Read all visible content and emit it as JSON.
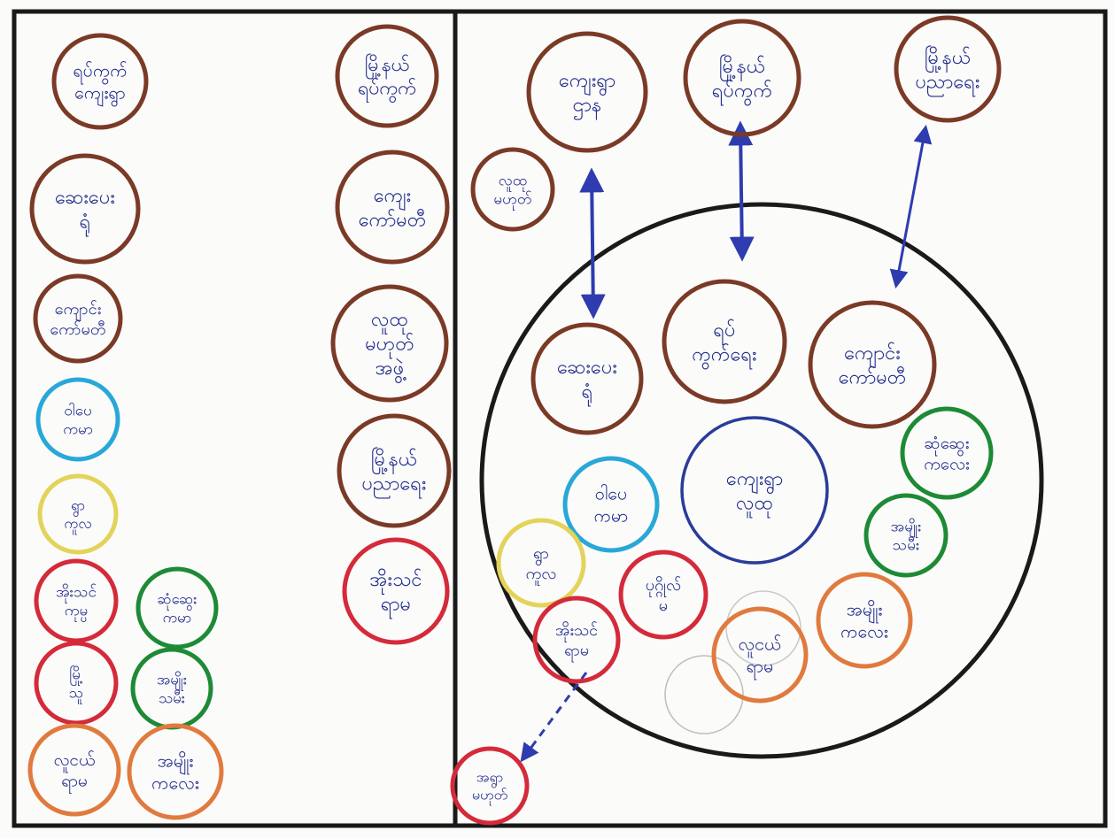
{
  "colors": {
    "frame": "#1a1a1a",
    "brown": "#7a3a26",
    "blue_text": "#1f2a8c",
    "blue_circle": "#2a3c9a",
    "arrow": "#2e3cb0",
    "cyan": "#28a8d8",
    "yellow": "#e3d35a",
    "red": "#d42a3a",
    "green": "#1e8a36",
    "orange": "#e07a3e",
    "faint": "#bdbdbd",
    "paper": "#fbfbf9"
  },
  "left_panel": {
    "circles": [
      {
        "id": "l1",
        "color": "brown",
        "lines": [
          "ရပ်ကွက်",
          "ကျေးရွာ"
        ]
      },
      {
        "id": "l2",
        "color": "brown",
        "lines": [
          "ဆေးပေး",
          "ရုံ"
        ]
      },
      {
        "id": "l3",
        "color": "brown",
        "lines": [
          "ကျောင်း",
          "ကော်မတီ"
        ]
      },
      {
        "id": "l4",
        "color": "cyan",
        "lines": [
          "ဝါပေ",
          "ကမာ"
        ]
      },
      {
        "id": "l5",
        "color": "yellow",
        "lines": [
          "ရွာ",
          "ကူလ"
        ]
      },
      {
        "id": "l6",
        "color": "red",
        "lines": [
          "အိုးသင်",
          "ကုမ္ပ"
        ]
      },
      {
        "id": "l7",
        "color": "green",
        "lines": [
          "ဆုံဆွေး",
          "ကမာ"
        ]
      },
      {
        "id": "l8",
        "color": "red",
        "lines": [
          "မြို့",
          "သူ"
        ]
      },
      {
        "id": "l9",
        "color": "green",
        "lines": [
          "အမျိုး",
          "သမီး"
        ]
      },
      {
        "id": "l10",
        "color": "orange",
        "lines": [
          "လူငယ်",
          "ရာမ"
        ]
      },
      {
        "id": "l11",
        "color": "orange",
        "lines": [
          "အမျိုး",
          "ကလေး"
        ]
      },
      {
        "id": "l12",
        "color": "brown",
        "lines": [
          "မြို့နယ်",
          "ရပ်ကွက်"
        ]
      },
      {
        "id": "l13",
        "color": "brown",
        "lines": [
          "ကျေး",
          "ကော်မတီ"
        ]
      },
      {
        "id": "l14",
        "color": "brown",
        "lines": [
          "လူထု",
          "မဟုတ်",
          "အဖွဲ့"
        ]
      },
      {
        "id": "l15",
        "color": "brown",
        "lines": [
          "မြို့နယ်",
          "ပညာရေး"
        ]
      },
      {
        "id": "l16",
        "color": "red",
        "lines": [
          "အိုးသင်",
          "ရာမ"
        ]
      }
    ]
  },
  "right_panel": {
    "outside": [
      {
        "id": "r1",
        "color": "brown",
        "lines": [
          "ကျေးရွာ",
          "ဌာန"
        ]
      },
      {
        "id": "r2",
        "color": "brown",
        "lines": [
          "မြို့နယ်",
          "ရပ်ကွက်"
        ]
      },
      {
        "id": "r3",
        "color": "brown",
        "lines": [
          "မြို့နယ်",
          "ပညာရေး"
        ]
      },
      {
        "id": "r4",
        "color": "brown",
        "lines": [
          "လူထု",
          "မဟုတ်"
        ]
      },
      {
        "id": "r5",
        "color": "red",
        "lines": [
          "အရွာ",
          "မဟုတ်"
        ]
      }
    ],
    "inside": [
      {
        "id": "c_center",
        "color": "blue_circle",
        "lines": [
          "ကျေးရွာ",
          "လူထု"
        ]
      },
      {
        "id": "i1",
        "color": "brown",
        "lines": [
          "ဆေးပေး",
          "ရုံ"
        ]
      },
      {
        "id": "i2",
        "color": "brown",
        "lines": [
          "ရပ်",
          "ကွက်ရေး"
        ]
      },
      {
        "id": "i3",
        "color": "brown",
        "lines": [
          "ကျောင်း",
          "ကော်မတီ"
        ]
      },
      {
        "id": "i4",
        "color": "green",
        "lines": [
          "ဆုံဆွေး",
          "ကလေး"
        ]
      },
      {
        "id": "i5",
        "color": "green",
        "lines": [
          "အမျိုး",
          "သမီး"
        ]
      },
      {
        "id": "i6",
        "color": "cyan",
        "lines": [
          "ဝါပေ",
          "ကမာ"
        ]
      },
      {
        "id": "i7",
        "color": "yellow",
        "lines": [
          "ရွာ",
          "ကူလ"
        ]
      },
      {
        "id": "i8",
        "color": "red",
        "lines": [
          "ပုဂ္ဂိုလ်",
          "မ"
        ]
      },
      {
        "id": "i9",
        "color": "red",
        "lines": [
          "အိုးသင်",
          "ရာမ"
        ]
      },
      {
        "id": "i10",
        "color": "orange",
        "lines": [
          "လူငယ်",
          "ရာမ"
        ]
      },
      {
        "id": "i11",
        "color": "orange",
        "lines": [
          "အမျိုး",
          "ကလေး"
        ]
      }
    ]
  }
}
